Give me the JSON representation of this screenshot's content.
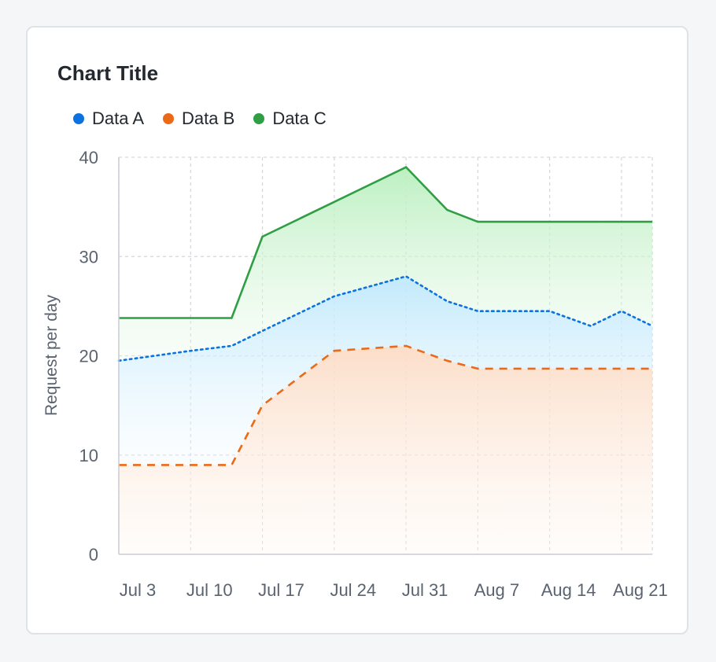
{
  "card": {
    "title": "Chart Title"
  },
  "colors": {
    "data_a": "#0b72e0",
    "data_b": "#ea6a1a",
    "data_c": "#2f9e44",
    "grid": "#d3d6db",
    "axis": "#c9cdd3",
    "fill_a": "#cfeefc",
    "fill_b": "#fbe6d8",
    "fill_c": "#c8f3cc"
  },
  "chart_data": {
    "type": "area",
    "title": "Chart Title",
    "ylabel": "Request per day",
    "xlabel": "",
    "ylim": [
      0,
      40
    ],
    "yticks": [
      0,
      10,
      20,
      30,
      40
    ],
    "x_tick_labels": [
      "Jul 3",
      "Jul 10",
      "Jul 17",
      "Jul 24",
      "Jul 31",
      "Aug 7",
      "Aug 14",
      "Aug 21"
    ],
    "x": [
      "Jul 3",
      "Jul 10",
      "Jul 14",
      "Jul 17",
      "Jul 24",
      "Jul 31",
      "Aug 4",
      "Aug 7",
      "Aug 11",
      "Aug 14",
      "Aug 18",
      "Aug 21",
      "Aug 24"
    ],
    "grid": true,
    "legend_position": "top-left",
    "series": [
      {
        "name": "Data A",
        "style": "dotted",
        "values": [
          19.5,
          20.5,
          21,
          22.5,
          26,
          28,
          25.5,
          24.5,
          24.5,
          24.5,
          23,
          24.5,
          23
        ]
      },
      {
        "name": "Data B",
        "style": "dashed",
        "values": [
          9,
          9,
          9,
          15,
          20.5,
          21,
          19.5,
          18.7,
          18.7,
          18.7,
          18.7,
          18.7,
          18.7
        ]
      },
      {
        "name": "Data C",
        "style": "solid",
        "values": [
          23.8,
          23.8,
          23.8,
          32,
          35.5,
          39,
          34.7,
          33.5,
          33.5,
          33.5,
          33.5,
          33.5,
          33.5
        ]
      }
    ]
  }
}
